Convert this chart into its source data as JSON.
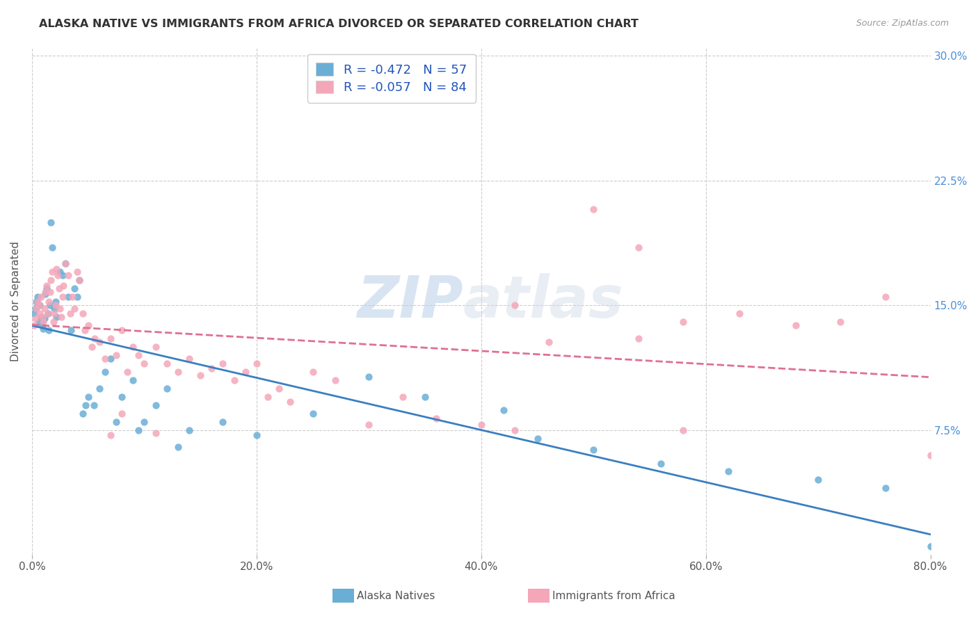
{
  "title": "ALASKA NATIVE VS IMMIGRANTS FROM AFRICA DIVORCED OR SEPARATED CORRELATION CHART",
  "source": "Source: ZipAtlas.com",
  "xlabel_ticks": [
    "0.0%",
    "20.0%",
    "40.0%",
    "60.0%",
    "80.0%"
  ],
  "ylabel_ticks": [
    "7.5%",
    "15.0%",
    "22.5%",
    "30.0%"
  ],
  "ylabel_label": "Divorced or Separated",
  "legend_label_1": "Alaska Natives",
  "legend_label_2": "Immigrants from Africa",
  "R1": "-0.472",
  "N1": "57",
  "R2": "-0.057",
  "N2": "84",
  "color_blue": "#6aaed6",
  "color_pink": "#f4a7b9",
  "color_line_blue": "#3a7fc1",
  "color_line_pink": "#e07090",
  "watermark_zip": "ZIP",
  "watermark_atlas": "atlas",
  "xlim": [
    0.0,
    0.8
  ],
  "ylim": [
    0.0,
    0.305
  ],
  "alaska_natives_x": [
    0.002,
    0.003,
    0.004,
    0.005,
    0.006,
    0.007,
    0.008,
    0.009,
    0.01,
    0.011,
    0.012,
    0.013,
    0.014,
    0.015,
    0.016,
    0.017,
    0.018,
    0.02,
    0.021,
    0.022,
    0.025,
    0.027,
    0.03,
    0.032,
    0.035,
    0.038,
    0.04,
    0.042,
    0.045,
    0.048,
    0.05,
    0.055,
    0.06,
    0.065,
    0.07,
    0.075,
    0.08,
    0.09,
    0.095,
    0.1,
    0.11,
    0.12,
    0.13,
    0.14,
    0.17,
    0.2,
    0.25,
    0.3,
    0.35,
    0.42,
    0.45,
    0.5,
    0.56,
    0.62,
    0.7,
    0.76,
    0.8
  ],
  "alaska_natives_y": [
    0.145,
    0.148,
    0.152,
    0.155,
    0.14,
    0.15,
    0.143,
    0.138,
    0.136,
    0.142,
    0.157,
    0.16,
    0.145,
    0.135,
    0.15,
    0.2,
    0.185,
    0.148,
    0.152,
    0.143,
    0.17,
    0.168,
    0.175,
    0.155,
    0.135,
    0.16,
    0.155,
    0.165,
    0.085,
    0.09,
    0.095,
    0.09,
    0.1,
    0.11,
    0.118,
    0.08,
    0.095,
    0.105,
    0.075,
    0.08,
    0.09,
    0.1,
    0.065,
    0.075,
    0.08,
    0.072,
    0.085,
    0.107,
    0.095,
    0.087,
    0.07,
    0.063,
    0.055,
    0.05,
    0.045,
    0.04,
    0.005
  ],
  "immigrants_africa_x": [
    0.002,
    0.003,
    0.004,
    0.005,
    0.006,
    0.007,
    0.008,
    0.009,
    0.01,
    0.011,
    0.012,
    0.013,
    0.014,
    0.015,
    0.016,
    0.017,
    0.018,
    0.019,
    0.02,
    0.021,
    0.022,
    0.023,
    0.024,
    0.025,
    0.026,
    0.027,
    0.028,
    0.03,
    0.032,
    0.034,
    0.036,
    0.038,
    0.04,
    0.042,
    0.045,
    0.047,
    0.05,
    0.053,
    0.056,
    0.06,
    0.065,
    0.07,
    0.075,
    0.08,
    0.085,
    0.09,
    0.095,
    0.1,
    0.11,
    0.12,
    0.13,
    0.14,
    0.15,
    0.16,
    0.17,
    0.18,
    0.19,
    0.2,
    0.21,
    0.22,
    0.23,
    0.25,
    0.27,
    0.3,
    0.33,
    0.36,
    0.4,
    0.43,
    0.46,
    0.5,
    0.54,
    0.58,
    0.63,
    0.68,
    0.72,
    0.76,
    0.8,
    0.54,
    0.58,
    0.43,
    0.11,
    0.07,
    0.08
  ],
  "immigrants_africa_y": [
    0.138,
    0.142,
    0.148,
    0.152,
    0.15,
    0.145,
    0.155,
    0.143,
    0.14,
    0.148,
    0.158,
    0.162,
    0.145,
    0.152,
    0.158,
    0.165,
    0.17,
    0.14,
    0.145,
    0.15,
    0.172,
    0.168,
    0.16,
    0.148,
    0.143,
    0.155,
    0.162,
    0.175,
    0.168,
    0.145,
    0.155,
    0.148,
    0.17,
    0.165,
    0.145,
    0.135,
    0.138,
    0.125,
    0.13,
    0.128,
    0.118,
    0.13,
    0.12,
    0.135,
    0.11,
    0.125,
    0.12,
    0.115,
    0.125,
    0.115,
    0.11,
    0.118,
    0.108,
    0.112,
    0.115,
    0.105,
    0.11,
    0.115,
    0.095,
    0.1,
    0.092,
    0.11,
    0.105,
    0.078,
    0.095,
    0.082,
    0.078,
    0.075,
    0.128,
    0.208,
    0.13,
    0.14,
    0.145,
    0.138,
    0.14,
    0.155,
    0.06,
    0.185,
    0.075,
    0.15,
    0.073,
    0.072,
    0.085
  ]
}
